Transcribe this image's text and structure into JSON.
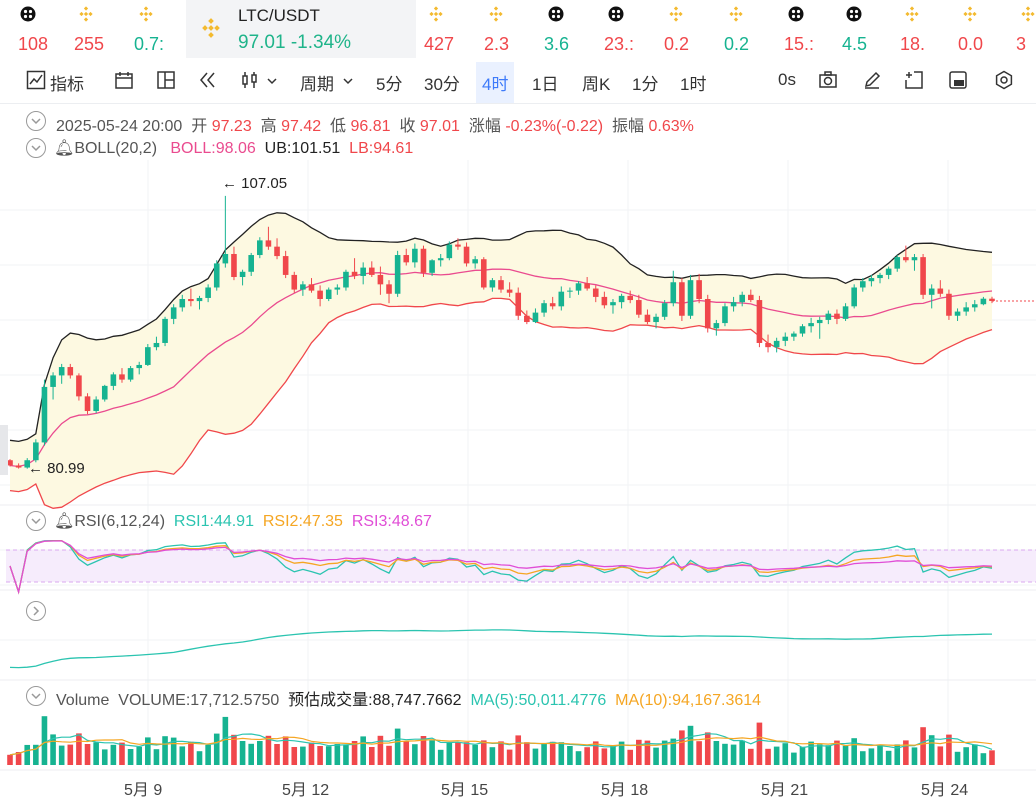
{
  "tickers": [
    {
      "val": "108",
      "color": "#f0474b",
      "icon": "x-coin-icon"
    },
    {
      "val": "255",
      "color": "#f0474b",
      "icon": "binance-icon"
    },
    {
      "val": "0.7:",
      "color": "#16b391",
      "icon": "binance-icon"
    },
    {
      "val": "427",
      "color": "#f0474b",
      "icon": "binance-icon"
    },
    {
      "val": "2.3",
      "color": "#f0474b",
      "icon": "binance-icon"
    },
    {
      "val": "3.6",
      "color": "#16b391",
      "icon": "x-coin-icon"
    },
    {
      "val": "23.:",
      "color": "#f0474b",
      "icon": "x-coin-icon"
    },
    {
      "val": "0.2",
      "color": "#f0474b",
      "icon": "binance-icon"
    },
    {
      "val": "0.2",
      "color": "#16b391",
      "icon": "binance-icon"
    },
    {
      "val": "15.:",
      "color": "#f0474b",
      "icon": "x-coin-icon"
    },
    {
      "val": "4.5",
      "color": "#16b391",
      "icon": "x-coin-icon"
    },
    {
      "val": "18.",
      "color": "#f0474b",
      "icon": "binance-icon"
    },
    {
      "val": "0.0",
      "color": "#f0474b",
      "icon": "binance-icon"
    },
    {
      "val": "3",
      "color": "#f0474b",
      "icon": "binance-icon"
    }
  ],
  "active": {
    "name": "LTC/USDT",
    "price": "97.01",
    "change": "-1.34%"
  },
  "toolbar": {
    "indicators": "指标",
    "period": "周期",
    "intervals": [
      "5分",
      "30分",
      "4时",
      "1日",
      "周K",
      "1分",
      "1时"
    ],
    "active_interval": "4时",
    "countdown": "0s"
  },
  "ohlc": {
    "date": "2025-05-24 20:00",
    "open_label": "开",
    "open": "97.23",
    "high_label": "高",
    "high": "97.42",
    "low_label": "低",
    "low": "96.81",
    "close_label": "收",
    "close": "97.01",
    "chg_label": "涨幅",
    "chg": "-0.23%(-0.22)",
    "amp_label": "振幅",
    "amp": "0.63%"
  },
  "boll": {
    "name": "BOLL(20,2)",
    "mid": "BOLL:98.06",
    "ub": "UB:101.51",
    "lb": "LB:94.61"
  },
  "rsi": {
    "name": "RSI(6,12,24)",
    "rsi1": "RSI1:44.91",
    "rsi2": "RSI2:47.35",
    "rsi3": "RSI3:48.67"
  },
  "volume": {
    "name": "Volume",
    "vol": "VOLUME:17,712.5750",
    "est": "预估成交量:88,747.7662",
    "ma5": "MA(5):50,011.4776",
    "ma10": "MA(10):94,167.3614"
  },
  "price_high": "107.05",
  "price_low": "80.99",
  "x_labels": [
    "5月 9",
    "5月 12",
    "5月 15",
    "5月 18",
    "5月 21",
    "5月 24"
  ],
  "colors": {
    "up": "#16b391",
    "down": "#f0474b",
    "ub": "#222222",
    "mid": "#ea4b8f",
    "lb": "#f0474b",
    "band": "#fdf9e1"
  },
  "chart_data": {
    "type": "candlestick",
    "interval": "4h",
    "y_range": [
      78,
      110
    ],
    "candles": [
      [
        81.8,
        81.9,
        81.2,
        81.3
      ],
      [
        81.3,
        81.5,
        81.0,
        81.1
      ],
      [
        81.1,
        82.0,
        80.99,
        81.8
      ],
      [
        81.8,
        83.8,
        81.6,
        83.5
      ],
      [
        83.5,
        89.5,
        83.2,
        88.8
      ],
      [
        88.8,
        90.2,
        87.6,
        89.9
      ],
      [
        89.9,
        91.0,
        89.1,
        90.7
      ],
      [
        90.7,
        91.0,
        89.6,
        89.9
      ],
      [
        89.9,
        90.1,
        87.5,
        87.9
      ],
      [
        87.9,
        88.2,
        86.2,
        86.5
      ],
      [
        86.5,
        87.9,
        86.3,
        87.6
      ],
      [
        87.6,
        89.0,
        87.4,
        88.9
      ],
      [
        88.9,
        90.2,
        88.5,
        90.0
      ],
      [
        90.0,
        90.6,
        89.2,
        89.5
      ],
      [
        89.5,
        90.8,
        89.3,
        90.6
      ],
      [
        90.6,
        91.2,
        90.0,
        90.9
      ],
      [
        90.9,
        92.9,
        90.8,
        92.6
      ],
      [
        92.6,
        93.6,
        92.3,
        93.0
      ],
      [
        93.0,
        95.5,
        92.7,
        95.3
      ],
      [
        95.3,
        96.7,
        94.8,
        96.4
      ],
      [
        96.4,
        97.6,
        96.0,
        97.2
      ],
      [
        97.2,
        98.2,
        96.5,
        97.0
      ],
      [
        97.0,
        97.5,
        96.2,
        97.3
      ],
      [
        97.3,
        98.6,
        96.9,
        98.3
      ],
      [
        98.3,
        100.9,
        98.0,
        100.6
      ],
      [
        100.6,
        107.05,
        100.2,
        101.5
      ],
      [
        101.5,
        102.2,
        99.0,
        99.3
      ],
      [
        99.3,
        100.0,
        98.5,
        99.8
      ],
      [
        99.8,
        101.6,
        99.4,
        101.4
      ],
      [
        101.4,
        103.1,
        101.1,
        102.8
      ],
      [
        102.8,
        104.1,
        101.9,
        102.2
      ],
      [
        102.2,
        103.0,
        101.0,
        101.3
      ],
      [
        101.3,
        101.8,
        99.2,
        99.5
      ],
      [
        99.5,
        99.8,
        97.8,
        98.1
      ],
      [
        98.1,
        98.9,
        97.5,
        98.6
      ],
      [
        98.6,
        99.2,
        97.8,
        98.0
      ],
      [
        98.0,
        98.5,
        96.5,
        97.2
      ],
      [
        97.2,
        98.3,
        97.0,
        98.1
      ],
      [
        98.1,
        98.6,
        97.6,
        98.3
      ],
      [
        98.3,
        100.0,
        98.0,
        99.8
      ],
      [
        99.8,
        101.1,
        99.1,
        99.4
      ],
      [
        99.4,
        100.7,
        98.6,
        100.2
      ],
      [
        100.2,
        100.8,
        99.3,
        99.5
      ],
      [
        99.5,
        100.3,
        97.6,
        98.6
      ],
      [
        98.6,
        99.0,
        96.8,
        97.7
      ],
      [
        97.7,
        101.8,
        97.4,
        101.4
      ],
      [
        101.4,
        102.0,
        100.4,
        100.7
      ],
      [
        100.7,
        102.5,
        100.2,
        102.0
      ],
      [
        102.0,
        102.3,
        99.3,
        99.7
      ],
      [
        99.7,
        101.0,
        99.4,
        100.9
      ],
      [
        100.9,
        101.5,
        100.3,
        101.1
      ],
      [
        101.1,
        102.7,
        100.9,
        102.4
      ],
      [
        102.4,
        103.0,
        101.9,
        102.2
      ],
      [
        102.2,
        102.6,
        100.3,
        100.6
      ],
      [
        100.6,
        101.3,
        100.1,
        101.0
      ],
      [
        101.0,
        101.2,
        98.1,
        98.3
      ],
      [
        98.3,
        99.2,
        97.9,
        99.0
      ],
      [
        99.0,
        99.4,
        97.8,
        98.1
      ],
      [
        98.1,
        98.8,
        97.4,
        97.8
      ],
      [
        97.8,
        98.3,
        95.2,
        95.6
      ],
      [
        95.6,
        96.1,
        94.8,
        95.0
      ],
      [
        95.0,
        96.3,
        94.9,
        95.9
      ],
      [
        95.9,
        97.1,
        95.5,
        96.8
      ],
      [
        96.8,
        97.4,
        96.2,
        96.5
      ],
      [
        96.5,
        98.4,
        96.1,
        97.9
      ],
      [
        97.9,
        98.3,
        97.3,
        98.0
      ],
      [
        98.0,
        98.9,
        97.6,
        98.7
      ],
      [
        98.7,
        99.3,
        98.0,
        98.2
      ],
      [
        98.2,
        98.5,
        96.9,
        97.4
      ],
      [
        97.4,
        97.9,
        96.3,
        96.6
      ],
      [
        96.6,
        97.2,
        95.8,
        96.9
      ],
      [
        96.9,
        97.7,
        96.3,
        97.5
      ],
      [
        97.5,
        98.0,
        96.8,
        97.1
      ],
      [
        97.1,
        97.6,
        95.4,
        95.7
      ],
      [
        95.7,
        96.2,
        94.8,
        95.0
      ],
      [
        95.0,
        95.8,
        94.4,
        95.5
      ],
      [
        95.5,
        97.1,
        95.2,
        96.8
      ],
      [
        96.8,
        99.9,
        96.5,
        98.8
      ],
      [
        98.8,
        99.2,
        95.1,
        95.6
      ],
      [
        95.6,
        99.5,
        95.3,
        99.0
      ],
      [
        99.0,
        99.6,
        96.8,
        97.2
      ],
      [
        97.2,
        97.6,
        94.0,
        94.4
      ],
      [
        94.4,
        95.2,
        93.7,
        94.9
      ],
      [
        94.9,
        96.8,
        94.6,
        96.5
      ],
      [
        96.5,
        97.4,
        96.0,
        96.9
      ],
      [
        96.9,
        97.9,
        96.5,
        97.6
      ],
      [
        97.6,
        98.1,
        96.9,
        97.1
      ],
      [
        97.1,
        97.5,
        92.6,
        93.0
      ],
      [
        93.0,
        93.8,
        92.1,
        92.6
      ],
      [
        92.6,
        93.5,
        92.1,
        93.2
      ],
      [
        93.2,
        94.0,
        92.7,
        93.6
      ],
      [
        93.6,
        94.1,
        93.2,
        93.9
      ],
      [
        93.9,
        94.8,
        93.6,
        94.6
      ],
      [
        94.6,
        95.4,
        94.0,
        94.9
      ],
      [
        94.9,
        95.5,
        93.4,
        95.2
      ],
      [
        95.2,
        96.1,
        94.8,
        95.8
      ],
      [
        95.8,
        96.2,
        94.8,
        95.3
      ],
      [
        95.3,
        96.8,
        95.1,
        96.5
      ],
      [
        96.5,
        98.6,
        96.3,
        98.3
      ],
      [
        98.3,
        99.2,
        97.9,
        98.9
      ],
      [
        98.9,
        99.5,
        98.4,
        99.2
      ],
      [
        99.2,
        99.7,
        98.7,
        99.5
      ],
      [
        99.5,
        100.3,
        99.1,
        100.1
      ],
      [
        100.1,
        101.4,
        99.8,
        101.2
      ],
      [
        101.2,
        102.3,
        100.7,
        100.9
      ],
      [
        100.9,
        101.5,
        99.9,
        101.2
      ],
      [
        101.2,
        101.5,
        97.2,
        97.6
      ],
      [
        97.6,
        98.6,
        96.3,
        98.2
      ],
      [
        98.2,
        99.0,
        97.4,
        97.7
      ],
      [
        97.7,
        98.1,
        95.2,
        95.6
      ],
      [
        95.6,
        96.3,
        95.1,
        96.0
      ],
      [
        96.0,
        96.9,
        95.6,
        96.4
      ],
      [
        96.4,
        97.1,
        96.0,
        96.7
      ],
      [
        96.7,
        97.4,
        96.6,
        97.23
      ],
      [
        97.23,
        97.42,
        96.81,
        97.01
      ]
    ],
    "boll": {
      "period": 20,
      "k": 2,
      "mid": 98.06,
      "ub": 101.51,
      "lb": 94.61
    },
    "rsi": {
      "rsi1": 44.91,
      "rsi2": 47.35,
      "rsi3": 48.67,
      "overbought": 70,
      "oversold": 30
    },
    "volume": {
      "last": 17712.575,
      "ma5": 50011.4776,
      "ma10": 94167.3614
    }
  }
}
